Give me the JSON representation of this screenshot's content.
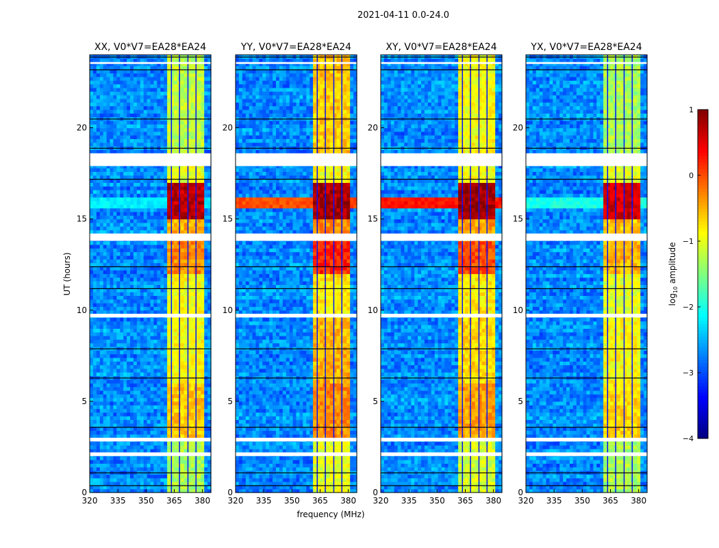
{
  "chart_data": {
    "type": "heatmap",
    "title": "2021-04-11 0.0-24.0",
    "xlabel": "frequency (MHz)",
    "ylabel": "UT (hours)",
    "xlim": [
      320,
      384.5
    ],
    "ylim": [
      0,
      24
    ],
    "xticks": [
      "320",
      "335",
      "350",
      "365",
      "380"
    ],
    "xtick_values": [
      320,
      335,
      350,
      365,
      380
    ],
    "yticks": [
      "0",
      "5",
      "10",
      "15",
      "20"
    ],
    "ytick_values": [
      0,
      5,
      10,
      15,
      20
    ],
    "colorbar": {
      "label": "log10 amplitude",
      "label_main": "log",
      "label_sub": "10",
      "label_rest": " amplitude",
      "range": [
        -4,
        1
      ],
      "ticks": [
        "1",
        "0",
        "−1",
        "−2",
        "−3",
        "−4"
      ],
      "tick_values": [
        1,
        0,
        -1,
        -2,
        -3,
        -4
      ],
      "colormap": "jet"
    },
    "rfi_band_mhz": [
      360.7,
      380.4
    ],
    "band_gaps_mhz": [
      363.2,
      367.5,
      372,
      376.3
    ],
    "flagged_hours": [
      [
        2.0,
        2.2
      ],
      [
        2.8,
        3.0
      ],
      [
        9.6,
        9.8
      ],
      [
        13.8,
        14.2
      ],
      [
        17.9,
        18.6
      ],
      [
        23.5,
        23.6
      ]
    ],
    "background_level": -2.7,
    "time_blocks_hours": [
      0,
      3,
      6,
      9.6,
      12,
      13.8,
      15,
      17,
      18.6,
      24
    ],
    "panels": [
      {
        "title": "XX, V0*V7=EA28*EA24",
        "band_levels": [
          -1.3,
          -0.6,
          -0.9,
          -0.9,
          -0.3,
          -0.5,
          0.7,
          -1.0,
          -1.2
        ],
        "broadband_row_level": -2.2
      },
      {
        "title": "YY, V0*V7=EA28*EA24",
        "band_levels": [
          -1.0,
          -0.3,
          -0.5,
          -0.8,
          0.2,
          -0.3,
          0.8,
          -0.9,
          -0.6
        ],
        "broadband_row_level": 0.0
      },
      {
        "title": "XY, V0*V7=EA28*EA24",
        "band_levels": [
          -1.1,
          -0.4,
          -0.7,
          -0.8,
          0.0,
          -0.4,
          0.8,
          -0.9,
          -0.9
        ],
        "broadband_row_level": 0.3
      },
      {
        "title": "YX, V0*V7=EA28*EA24",
        "band_levels": [
          -1.3,
          -0.7,
          -0.9,
          -1.0,
          -0.5,
          -0.6,
          0.6,
          -1.0,
          -1.3
        ],
        "broadband_row_level": -2.0
      }
    ]
  }
}
